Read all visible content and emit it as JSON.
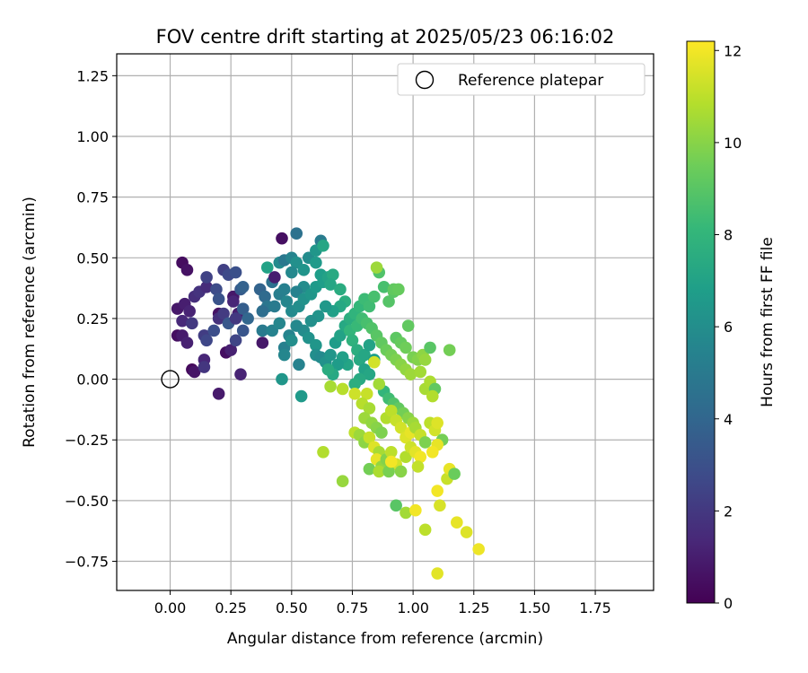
{
  "chart_data": {
    "type": "scatter",
    "title": "FOV centre drift starting at 2025/05/23 06:16:02",
    "xlabel": "Angular distance from reference (arcmin)",
    "ylabel": "Rotation from reference (arcmin)",
    "xlim": [
      -0.22,
      1.99
    ],
    "ylim": [
      -0.87,
      1.34
    ],
    "x_ticks": [
      0.0,
      0.25,
      0.5,
      0.75,
      1.0,
      1.25,
      1.5,
      1.75
    ],
    "x_tick_labels": [
      "0.00",
      "0.25",
      "0.50",
      "0.75",
      "1.00",
      "1.25",
      "1.50",
      "1.75"
    ],
    "y_ticks": [
      -0.75,
      -0.5,
      -0.25,
      0.0,
      0.25,
      0.5,
      0.75,
      1.0,
      1.25
    ],
    "y_tick_labels": [
      "−0.75",
      "−0.50",
      "−0.25",
      "0.00",
      "0.25",
      "0.50",
      "0.75",
      "1.00",
      "1.25"
    ],
    "grid": true,
    "colormap": "viridis",
    "colorbar": {
      "label": "Hours from first FF file",
      "range": [
        0,
        12.2
      ],
      "ticks": [
        0,
        2,
        4,
        6,
        8,
        10,
        12
      ],
      "tick_labels": [
        "0",
        "2",
        "4",
        "6",
        "8",
        "10",
        "12"
      ]
    },
    "legend": {
      "position": "top-right",
      "entries": [
        {
          "label": "Reference platepar",
          "marker": "open-circle"
        }
      ]
    },
    "reference_point": {
      "x": 0.0,
      "y": 0.0
    },
    "points": [
      [
        0.05,
        0.48,
        0.4
      ],
      [
        0.07,
        0.45,
        0.6
      ],
      [
        0.03,
        0.29,
        0.8
      ],
      [
        0.06,
        0.31,
        1.0
      ],
      [
        0.08,
        0.28,
        1.2
      ],
      [
        0.05,
        0.24,
        1.4
      ],
      [
        0.1,
        0.34,
        1.6
      ],
      [
        0.12,
        0.36,
        1.8
      ],
      [
        0.09,
        0.23,
        2.0
      ],
      [
        0.03,
        0.18,
        0.5
      ],
      [
        0.05,
        0.18,
        0.9
      ],
      [
        0.07,
        0.15,
        1.1
      ],
      [
        0.09,
        0.04,
        0.3
      ],
      [
        0.1,
        0.03,
        0.7
      ],
      [
        0.14,
        0.08,
        1.3
      ],
      [
        0.14,
        0.05,
        1.9
      ],
      [
        0.14,
        0.18,
        2.2
      ],
      [
        0.15,
        0.16,
        2.6
      ],
      [
        0.18,
        0.2,
        2.9
      ],
      [
        0.15,
        0.38,
        1.5
      ],
      [
        0.15,
        0.42,
        2.4
      ],
      [
        0.19,
        0.37,
        2.8
      ],
      [
        0.2,
        0.33,
        3.1
      ],
      [
        0.2,
        0.27,
        0.6
      ],
      [
        0.2,
        0.25,
        1.7
      ],
      [
        0.22,
        0.27,
        2.1
      ],
      [
        0.24,
        0.23,
        3.3
      ],
      [
        0.22,
        0.45,
        2.3
      ],
      [
        0.24,
        0.43,
        2.7
      ],
      [
        0.27,
        0.44,
        3.0
      ],
      [
        0.26,
        0.34,
        0.8
      ],
      [
        0.26,
        0.32,
        1.3
      ],
      [
        0.29,
        0.37,
        3.5
      ],
      [
        0.3,
        0.38,
        3.8
      ],
      [
        0.28,
        0.27,
        1.0
      ],
      [
        0.27,
        0.25,
        2.0
      ],
      [
        0.3,
        0.29,
        3.6
      ],
      [
        0.32,
        0.25,
        4.0
      ],
      [
        0.23,
        0.11,
        0.5
      ],
      [
        0.25,
        0.12,
        1.1
      ],
      [
        0.27,
        0.16,
        2.5
      ],
      [
        0.3,
        0.2,
        3.2
      ],
      [
        0.2,
        -0.06,
        0.9
      ],
      [
        0.29,
        0.02,
        1.2
      ],
      [
        0.37,
        0.37,
        3.9
      ],
      [
        0.39,
        0.34,
        4.2
      ],
      [
        0.42,
        0.4,
        4.5
      ],
      [
        0.43,
        0.42,
        1.0
      ],
      [
        0.4,
        0.3,
        4.8
      ],
      [
        0.43,
        0.3,
        5.0
      ],
      [
        0.45,
        0.35,
        5.2
      ],
      [
        0.47,
        0.37,
        5.3
      ],
      [
        0.38,
        0.15,
        0.8
      ],
      [
        0.38,
        0.2,
        5.0
      ],
      [
        0.42,
        0.2,
        5.4
      ],
      [
        0.45,
        0.23,
        5.6
      ],
      [
        0.38,
        0.28,
        4.4
      ],
      [
        0.46,
        0.58,
        0.5
      ],
      [
        0.52,
        0.6,
        4.6
      ],
      [
        0.4,
        0.46,
        7.0
      ],
      [
        0.45,
        0.48,
        5.8
      ],
      [
        0.47,
        0.49,
        4.9
      ],
      [
        0.5,
        0.5,
        5.5
      ],
      [
        0.52,
        0.48,
        6.1
      ],
      [
        0.5,
        0.44,
        5.7
      ],
      [
        0.55,
        0.45,
        6.3
      ],
      [
        0.57,
        0.5,
        5.9
      ],
      [
        0.6,
        0.53,
        6.4
      ],
      [
        0.62,
        0.57,
        5.1
      ],
      [
        0.63,
        0.55,
        7.2
      ],
      [
        0.6,
        0.48,
        6.6
      ],
      [
        0.62,
        0.43,
        6.8
      ],
      [
        0.55,
        0.38,
        5.9
      ],
      [
        0.52,
        0.36,
        5.4
      ],
      [
        0.48,
        0.32,
        5.6
      ],
      [
        0.5,
        0.28,
        5.8
      ],
      [
        0.53,
        0.3,
        6.0
      ],
      [
        0.55,
        0.33,
        6.2
      ],
      [
        0.58,
        0.35,
        6.4
      ],
      [
        0.6,
        0.38,
        6.6
      ],
      [
        0.63,
        0.4,
        6.8
      ],
      [
        0.65,
        0.42,
        7.0
      ],
      [
        0.67,
        0.43,
        7.4
      ],
      [
        0.66,
        0.39,
        7.2
      ],
      [
        0.7,
        0.37,
        7.5
      ],
      [
        0.72,
        0.32,
        7.6
      ],
      [
        0.7,
        0.3,
        7.3
      ],
      [
        0.67,
        0.28,
        6.9
      ],
      [
        0.64,
        0.3,
        6.5
      ],
      [
        0.61,
        0.26,
        6.3
      ],
      [
        0.58,
        0.24,
        6.1
      ],
      [
        0.55,
        0.2,
        5.9
      ],
      [
        0.52,
        0.22,
        5.7
      ],
      [
        0.49,
        0.18,
        5.5
      ],
      [
        0.47,
        0.13,
        5.3
      ],
      [
        0.5,
        0.16,
        6.0
      ],
      [
        0.47,
        0.1,
        5.6
      ],
      [
        0.53,
        0.06,
        5.4
      ],
      [
        0.46,
        0.0,
        6.4
      ],
      [
        0.54,
        -0.07,
        6.6
      ],
      [
        0.57,
        0.17,
        6.2
      ],
      [
        0.6,
        0.14,
        6.4
      ],
      [
        0.6,
        0.1,
        6.0
      ],
      [
        0.62,
        0.09,
        5.8
      ],
      [
        0.64,
        0.07,
        6.2
      ],
      [
        0.66,
        0.1,
        6.4
      ],
      [
        0.68,
        0.15,
        6.7
      ],
      [
        0.7,
        0.18,
        7.0
      ],
      [
        0.72,
        0.22,
        7.3
      ],
      [
        0.74,
        0.25,
        7.6
      ],
      [
        0.76,
        0.27,
        7.9
      ],
      [
        0.78,
        0.3,
        8.1
      ],
      [
        0.8,
        0.33,
        8.3
      ],
      [
        0.82,
        0.3,
        8.4
      ],
      [
        0.84,
        0.34,
        8.6
      ],
      [
        0.86,
        0.44,
        8.8
      ],
      [
        0.85,
        0.46,
        10.4
      ],
      [
        0.88,
        0.38,
        8.6
      ],
      [
        0.9,
        0.32,
        8.9
      ],
      [
        0.92,
        0.36,
        9.0
      ],
      [
        0.92,
        0.37,
        9.2
      ],
      [
        0.94,
        0.37,
        9.3
      ],
      [
        0.74,
        0.2,
        8.0
      ],
      [
        0.75,
        0.16,
        7.8
      ],
      [
        0.77,
        0.12,
        7.6
      ],
      [
        0.78,
        0.08,
        7.4
      ],
      [
        0.8,
        0.1,
        7.2
      ],
      [
        0.82,
        0.14,
        7.0
      ],
      [
        0.84,
        0.08,
        6.8
      ],
      [
        0.8,
        0.04,
        7.0
      ],
      [
        0.82,
        0.02,
        7.2
      ],
      [
        0.78,
        0.0,
        7.4
      ],
      [
        0.76,
        -0.02,
        7.6
      ],
      [
        0.73,
        0.06,
        7.1
      ],
      [
        0.71,
        0.09,
        6.9
      ],
      [
        0.69,
        0.06,
        6.7
      ],
      [
        0.67,
        0.02,
        7.3
      ],
      [
        0.65,
        0.04,
        7.5
      ],
      [
        0.77,
        0.22,
        8.2
      ],
      [
        0.79,
        0.25,
        8.4
      ],
      [
        0.81,
        0.23,
        8.6
      ],
      [
        0.83,
        0.21,
        8.8
      ],
      [
        0.85,
        0.18,
        9.0
      ],
      [
        0.87,
        0.15,
        9.2
      ],
      [
        0.89,
        0.12,
        9.4
      ],
      [
        0.91,
        0.1,
        9.6
      ],
      [
        0.93,
        0.08,
        9.8
      ],
      [
        0.95,
        0.06,
        10.0
      ],
      [
        0.97,
        0.04,
        10.2
      ],
      [
        0.99,
        0.02,
        10.4
      ],
      [
        0.93,
        0.17,
        9.1
      ],
      [
        0.95,
        0.15,
        9.3
      ],
      [
        0.97,
        0.13,
        9.5
      ],
      [
        0.98,
        0.22,
        9.2
      ],
      [
        1.0,
        0.09,
        9.7
      ],
      [
        1.02,
        0.08,
        9.9
      ],
      [
        1.04,
        0.1,
        10.1
      ],
      [
        1.05,
        0.08,
        10.3
      ],
      [
        1.07,
        0.13,
        9.0
      ],
      [
        1.15,
        0.12,
        9.6
      ],
      [
        1.03,
        0.03,
        10.5
      ],
      [
        1.05,
        -0.04,
        10.6
      ],
      [
        1.07,
        -0.01,
        10.7
      ],
      [
        1.09,
        -0.04,
        9.2
      ],
      [
        1.08,
        -0.07,
        10.8
      ],
      [
        0.88,
        -0.05,
        8.0
      ],
      [
        0.9,
        -0.08,
        8.4
      ],
      [
        0.92,
        -0.1,
        8.8
      ],
      [
        0.94,
        -0.12,
        9.2
      ],
      [
        0.96,
        -0.14,
        9.6
      ],
      [
        0.98,
        -0.16,
        10.0
      ],
      [
        1.0,
        -0.18,
        10.4
      ],
      [
        0.86,
        -0.02,
        10.5
      ],
      [
        0.84,
        0.07,
        11.4
      ],
      [
        0.81,
        -0.06,
        11.2
      ],
      [
        0.79,
        -0.1,
        10.9
      ],
      [
        0.82,
        -0.12,
        10.6
      ],
      [
        0.8,
        -0.16,
        10.4
      ],
      [
        0.83,
        -0.18,
        10.2
      ],
      [
        0.85,
        -0.2,
        10.0
      ],
      [
        0.87,
        -0.22,
        9.8
      ],
      [
        0.89,
        -0.16,
        10.8
      ],
      [
        0.91,
        -0.13,
        11.0
      ],
      [
        0.93,
        -0.17,
        11.2
      ],
      [
        0.95,
        -0.2,
        11.4
      ],
      [
        0.97,
        -0.24,
        11.6
      ],
      [
        0.99,
        -0.22,
        11.8
      ],
      [
        1.01,
        -0.2,
        10.6
      ],
      [
        1.03,
        -0.23,
        11.2
      ],
      [
        1.05,
        -0.26,
        9.8
      ],
      [
        1.07,
        -0.18,
        11.0
      ],
      [
        1.09,
        -0.21,
        11.4
      ],
      [
        1.1,
        -0.18,
        11.6
      ],
      [
        1.12,
        -0.25,
        9.6
      ],
      [
        1.1,
        -0.27,
        11.8
      ],
      [
        1.08,
        -0.3,
        12.0
      ],
      [
        0.76,
        -0.22,
        11.0
      ],
      [
        0.78,
        -0.23,
        10.4
      ],
      [
        0.8,
        -0.26,
        10.1
      ],
      [
        0.82,
        -0.24,
        11.2
      ],
      [
        0.84,
        -0.28,
        11.6
      ],
      [
        0.86,
        -0.3,
        10.6
      ],
      [
        0.85,
        -0.33,
        11.8
      ],
      [
        0.87,
        -0.36,
        10.2
      ],
      [
        0.89,
        -0.33,
        9.9
      ],
      [
        0.91,
        -0.3,
        11.0
      ],
      [
        0.93,
        -0.35,
        11.4
      ],
      [
        0.95,
        -0.38,
        10.0
      ],
      [
        0.97,
        -0.32,
        10.8
      ],
      [
        0.99,
        -0.28,
        11.3
      ],
      [
        1.01,
        -0.3,
        11.7
      ],
      [
        1.03,
        -0.32,
        12.0
      ],
      [
        1.02,
        -0.36,
        11.1
      ],
      [
        0.82,
        -0.37,
        9.6
      ],
      [
        0.86,
        -0.38,
        10.7
      ],
      [
        0.9,
        -0.38,
        9.7
      ],
      [
        0.91,
        -0.34,
        12.0
      ],
      [
        0.63,
        -0.3,
        10.8
      ],
      [
        0.71,
        -0.42,
        10.3
      ],
      [
        0.66,
        -0.03,
        10.6
      ],
      [
        0.71,
        -0.04,
        10.9
      ],
      [
        0.76,
        -0.06,
        11.3
      ],
      [
        0.93,
        -0.52,
        9.0
      ],
      [
        0.97,
        -0.55,
        10.5
      ],
      [
        1.01,
        -0.54,
        12.0
      ],
      [
        1.05,
        -0.62,
        11.0
      ],
      [
        1.11,
        -0.52,
        11.5
      ],
      [
        1.1,
        -0.46,
        12.0
      ],
      [
        1.14,
        -0.41,
        11.2
      ],
      [
        1.15,
        -0.37,
        11.8
      ],
      [
        1.17,
        -0.39,
        9.4
      ],
      [
        1.18,
        -0.59,
        11.8
      ],
      [
        1.22,
        -0.63,
        11.6
      ],
      [
        1.27,
        -0.7,
        11.9
      ],
      [
        1.1,
        -0.8,
        11.7
      ]
    ]
  }
}
